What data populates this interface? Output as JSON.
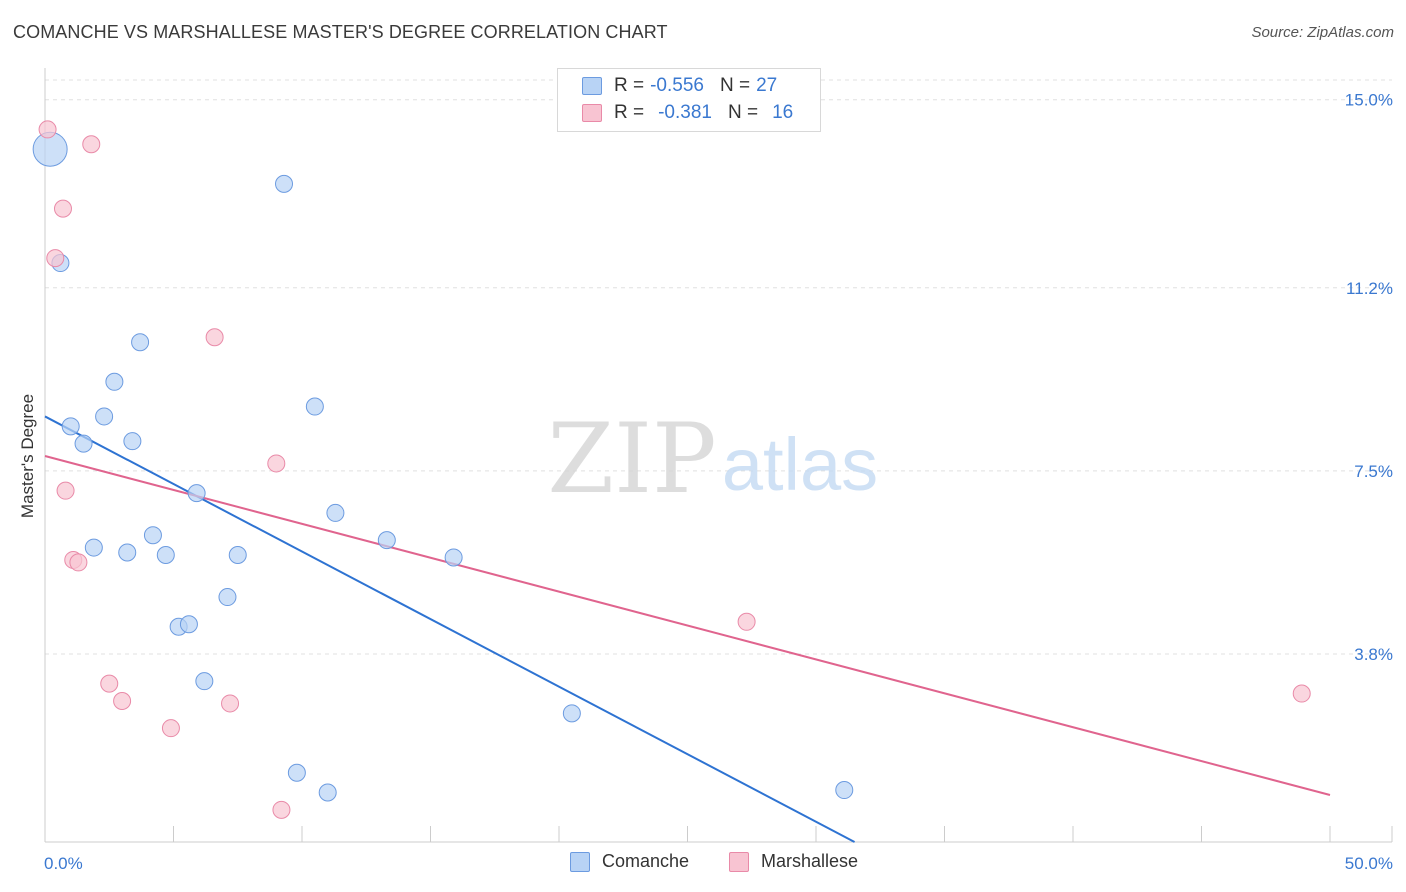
{
  "header": {
    "title": "COMANCHE VS MARSHALLESE MASTER'S DEGREE CORRELATION CHART",
    "source": "Source: ZipAtlas.com"
  },
  "watermark": {
    "zip": "ZIP",
    "atlas": "atlas"
  },
  "colors": {
    "blue_fill": "#b8d3f5",
    "blue_stroke": "#6c9be0",
    "blue_line": "#2e73d2",
    "pink_fill": "#f8c4d2",
    "pink_stroke": "#e98aa8",
    "pink_line": "#e0648e",
    "axis_label": "#3a78d0",
    "grid": "#e0e0e0"
  },
  "legend": {
    "comanche": {
      "r_label": "R =",
      "r_value": "-0.556",
      "n_label": "N =",
      "n_value": "27"
    },
    "marshallese": {
      "r_label": "R =",
      "r_value": "-0.381",
      "n_label": "N =",
      "n_value": "16"
    }
  },
  "chart_data": {
    "type": "scatter",
    "title": "COMANCHE VS MARSHALLESE MASTER'S DEGREE CORRELATION CHART",
    "xlabel": "",
    "ylabel": "Master's Degree",
    "xlim": [
      0,
      50
    ],
    "ylim": [
      0,
      15.5
    ],
    "x_tick_labels": [
      "0.0%",
      "50.0%"
    ],
    "y_ticks": [
      3.8,
      7.5,
      11.2,
      15.0
    ],
    "y_tick_labels": [
      "3.8%",
      "7.5%",
      "11.2%",
      "15.0%"
    ],
    "grid": true,
    "legend_position": "top-center",
    "series": [
      {
        "name": "Comanche",
        "color": "blue",
        "trend": {
          "x": [
            0,
            31.5
          ],
          "y": [
            8.6,
            0
          ]
        },
        "points": [
          {
            "x": 0.2,
            "y": 14.0,
            "big": true
          },
          {
            "x": 9.3,
            "y": 13.3
          },
          {
            "x": 0.6,
            "y": 11.7
          },
          {
            "x": 3.7,
            "y": 10.1
          },
          {
            "x": 2.7,
            "y": 9.3
          },
          {
            "x": 10.5,
            "y": 8.8
          },
          {
            "x": 2.3,
            "y": 8.6
          },
          {
            "x": 1.0,
            "y": 8.4
          },
          {
            "x": 1.5,
            "y": 8.05
          },
          {
            "x": 3.4,
            "y": 8.1
          },
          {
            "x": 5.9,
            "y": 7.05
          },
          {
            "x": 11.3,
            "y": 6.65
          },
          {
            "x": 4.2,
            "y": 6.2
          },
          {
            "x": 13.3,
            "y": 6.1
          },
          {
            "x": 1.9,
            "y": 5.95
          },
          {
            "x": 3.2,
            "y": 5.85
          },
          {
            "x": 4.7,
            "y": 5.8
          },
          {
            "x": 7.5,
            "y": 5.8
          },
          {
            "x": 15.9,
            "y": 5.75
          },
          {
            "x": 7.1,
            "y": 4.95
          },
          {
            "x": 5.2,
            "y": 4.35
          },
          {
            "x": 5.6,
            "y": 4.4
          },
          {
            "x": 6.2,
            "y": 3.25
          },
          {
            "x": 20.5,
            "y": 2.6
          },
          {
            "x": 9.8,
            "y": 1.4
          },
          {
            "x": 11.0,
            "y": 1.0
          },
          {
            "x": 31.1,
            "y": 1.05
          }
        ]
      },
      {
        "name": "Marshallese",
        "color": "pink",
        "trend": {
          "x": [
            0,
            50
          ],
          "y": [
            7.8,
            0.95
          ]
        },
        "points": [
          {
            "x": 0.1,
            "y": 14.4
          },
          {
            "x": 1.8,
            "y": 14.1
          },
          {
            "x": 0.7,
            "y": 12.8
          },
          {
            "x": 0.4,
            "y": 11.8
          },
          {
            "x": 6.6,
            "y": 10.2
          },
          {
            "x": 9.0,
            "y": 7.65
          },
          {
            "x": 0.8,
            "y": 7.1
          },
          {
            "x": 1.1,
            "y": 5.7
          },
          {
            "x": 1.3,
            "y": 5.65
          },
          {
            "x": 27.3,
            "y": 4.45
          },
          {
            "x": 2.5,
            "y": 3.2
          },
          {
            "x": 3.0,
            "y": 2.85
          },
          {
            "x": 7.2,
            "y": 2.8
          },
          {
            "x": 4.9,
            "y": 2.3
          },
          {
            "x": 48.9,
            "y": 3.0
          },
          {
            "x": 9.2,
            "y": 0.65
          }
        ]
      }
    ]
  },
  "bottom_legend": {
    "comanche": "Comanche",
    "marshallese": "Marshallese"
  }
}
